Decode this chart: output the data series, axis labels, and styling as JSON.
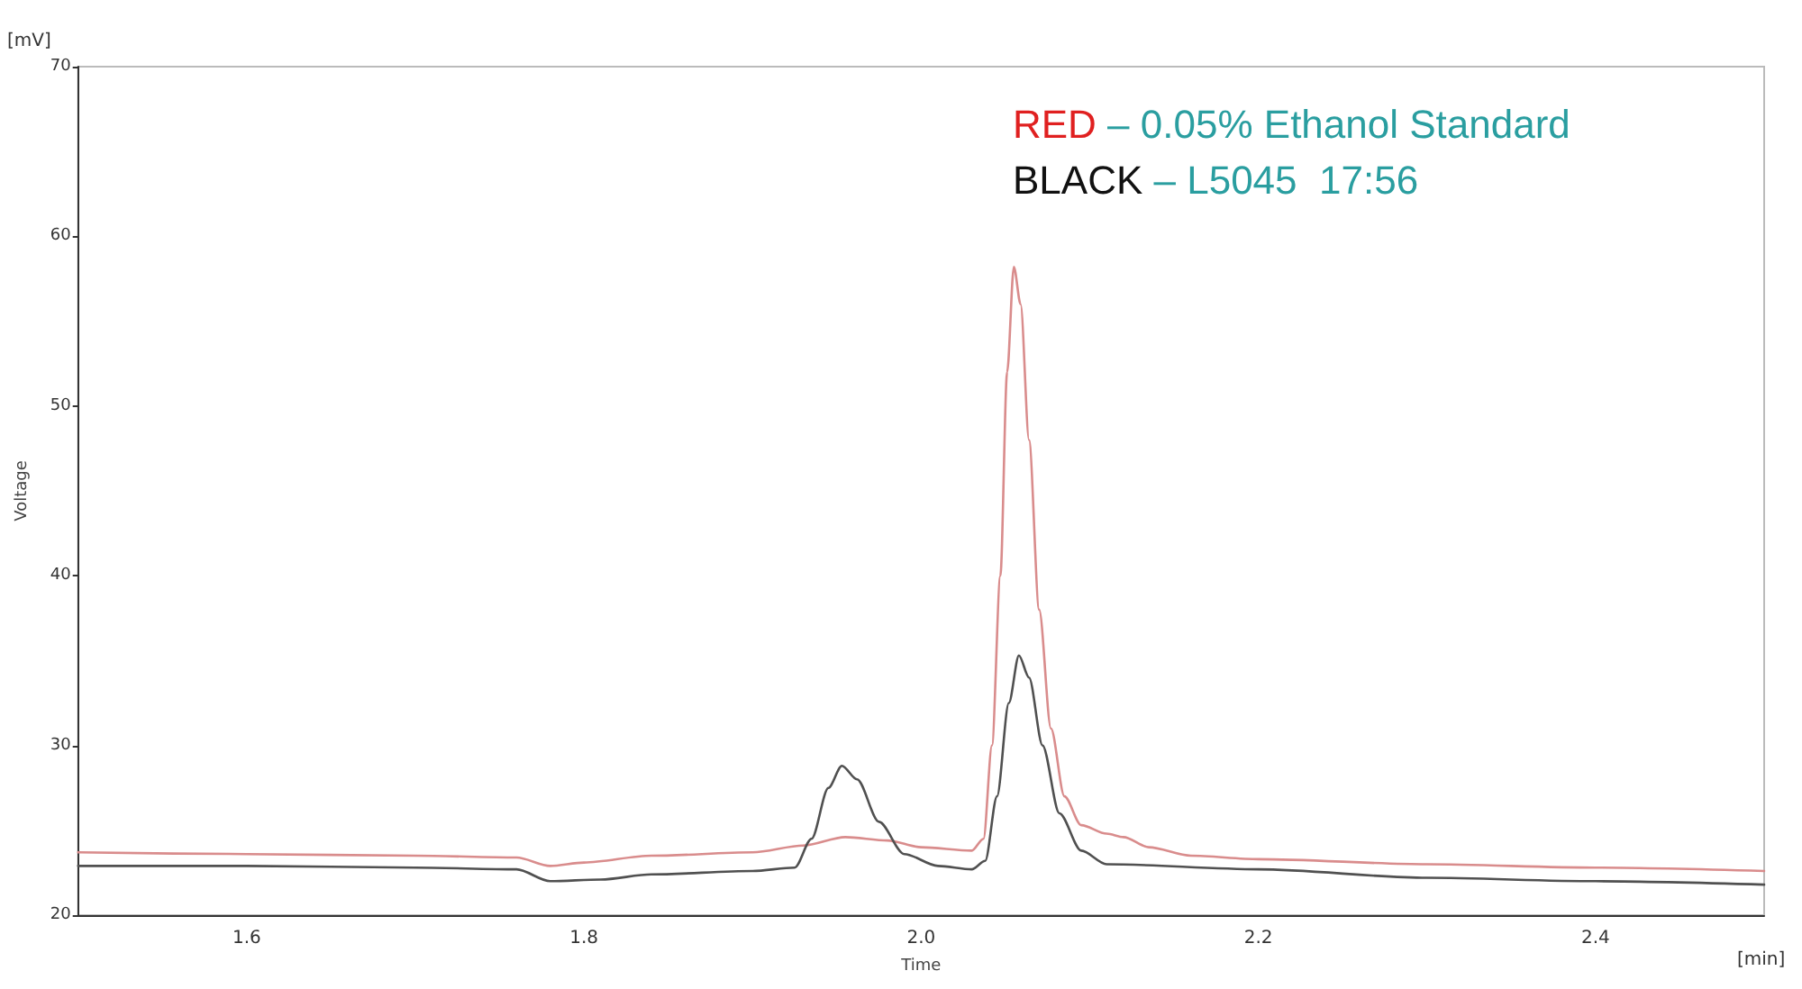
{
  "chart_data": {
    "type": "line",
    "xlabel": "Time",
    "ylabel": "Voltage",
    "annotations": [
      "RED – 0.05% Ethanol Standard",
      "BLACK – L5045  17:56",
      "[mV]",
      "[min]"
    ],
    "xlim": [
      1.5,
      2.5
    ],
    "xticks": [
      1.6,
      1.8,
      {
        "value": 2,
        "label": "2.0"
      },
      2.2,
      2.4
    ],
    "ylim": [
      20,
      70
    ],
    "yticks": [
      20,
      30,
      40,
      50,
      60,
      70
    ],
    "grid": false,
    "marker": "none",
    "line_style": "solid",
    "series": [
      {
        "color": "#d98c8c",
        "x": [
          1.5,
          1.6,
          1.7,
          1.76,
          1.78,
          1.8,
          1.84,
          1.9,
          1.93,
          1.955,
          1.98,
          2.0,
          2.03,
          2.037,
          2.042,
          2.047,
          2.051,
          2.055,
          2.059,
          2.064,
          2.07,
          2.077,
          2.085,
          2.095,
          2.11,
          2.12,
          2.135,
          2.16,
          2.2,
          2.3,
          2.4,
          2.5
        ],
        "values": [
          23.7,
          23.6,
          23.5,
          23.4,
          22.9,
          23.1,
          23.5,
          23.7,
          24.1,
          24.6,
          24.4,
          24.0,
          23.8,
          24.5,
          30,
          40,
          52,
          58.2,
          56,
          48,
          38,
          31,
          27,
          25.3,
          24.8,
          24.6,
          24.0,
          23.5,
          23.3,
          23.0,
          22.8,
          22.6
        ]
      },
      {
        "color": "#505050",
        "x": [
          1.5,
          1.6,
          1.7,
          1.76,
          1.78,
          1.81,
          1.84,
          1.9,
          1.925,
          1.935,
          1.945,
          1.953,
          1.962,
          1.975,
          1.99,
          2.01,
          2.03,
          2.038,
          2.045,
          2.052,
          2.058,
          2.064,
          2.072,
          2.082,
          2.095,
          2.11,
          2.2,
          2.3,
          2.4,
          2.5
        ],
        "values": [
          22.9,
          22.9,
          22.8,
          22.7,
          22.0,
          22.1,
          22.4,
          22.6,
          22.8,
          24.5,
          27.5,
          28.8,
          28.0,
          25.5,
          23.6,
          22.9,
          22.7,
          23.2,
          27,
          32.5,
          35.3,
          34.0,
          30,
          26,
          23.8,
          23.0,
          22.7,
          22.2,
          22.0,
          21.8
        ]
      }
    ]
  }
}
